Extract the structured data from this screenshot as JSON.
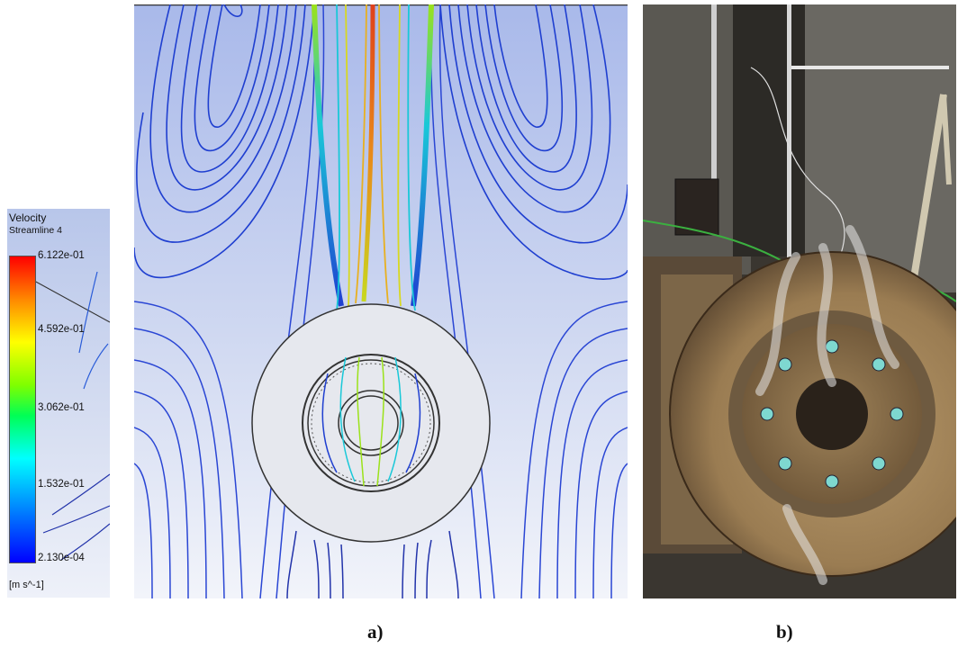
{
  "legend": {
    "title": "Velocity",
    "subtitle": "Streamline 4",
    "ticks": [
      "6.122e-01",
      "4.592e-01",
      "3.062e-01",
      "1.532e-01",
      "2.130e-04"
    ],
    "unit": "[m s^-1]",
    "colors": [
      "#ff0000",
      "#ffff00",
      "#00ff55",
      "#00ffff",
      "#0000ff"
    ]
  },
  "panels": {
    "a": {
      "caption": "a)",
      "streamline_colors": {
        "low": "#1f3fd0",
        "mid": "#19c8d8",
        "high": "#e8d820",
        "max": "#e0401a"
      }
    },
    "b": {
      "caption": "b)"
    }
  }
}
